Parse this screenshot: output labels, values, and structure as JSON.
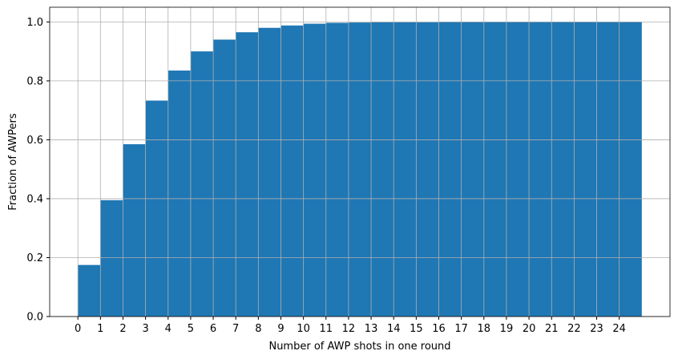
{
  "chart_data": {
    "type": "histogram",
    "xlabel": "Number of AWP shots in one round",
    "ylabel": "Fraction of AWPers",
    "bins": [
      0,
      1,
      2,
      3,
      4,
      5,
      6,
      7,
      8,
      9,
      10,
      11,
      12,
      13,
      14,
      15,
      16,
      17,
      18,
      19,
      20,
      21,
      22,
      23,
      24,
      25
    ],
    "values": [
      0.175,
      0.395,
      0.585,
      0.733,
      0.835,
      0.9,
      0.94,
      0.965,
      0.98,
      0.988,
      0.994,
      0.997,
      0.998,
      0.999,
      0.999,
      0.999,
      1.0,
      1.0,
      1.0,
      1.0,
      1.0,
      1.0,
      1.0,
      1.0,
      1.0
    ],
    "color": "#1f77b4",
    "xlim": [
      -1.25,
      26.25
    ],
    "ylim": [
      0,
      1.05
    ],
    "xticks": [
      0,
      1,
      2,
      3,
      4,
      5,
      6,
      7,
      8,
      9,
      10,
      11,
      12,
      13,
      14,
      15,
      16,
      17,
      18,
      19,
      20,
      21,
      22,
      23,
      24
    ],
    "yticks": [
      {
        "value": 0,
        "label": "0.0"
      },
      {
        "value": 0.2,
        "label": "0.2"
      },
      {
        "value": 0.4,
        "label": "0.4"
      },
      {
        "value": 0.6,
        "label": "0.6"
      },
      {
        "value": 0.8,
        "label": "0.8"
      },
      {
        "value": 1,
        "label": "1.0"
      }
    ],
    "grid": true
  }
}
